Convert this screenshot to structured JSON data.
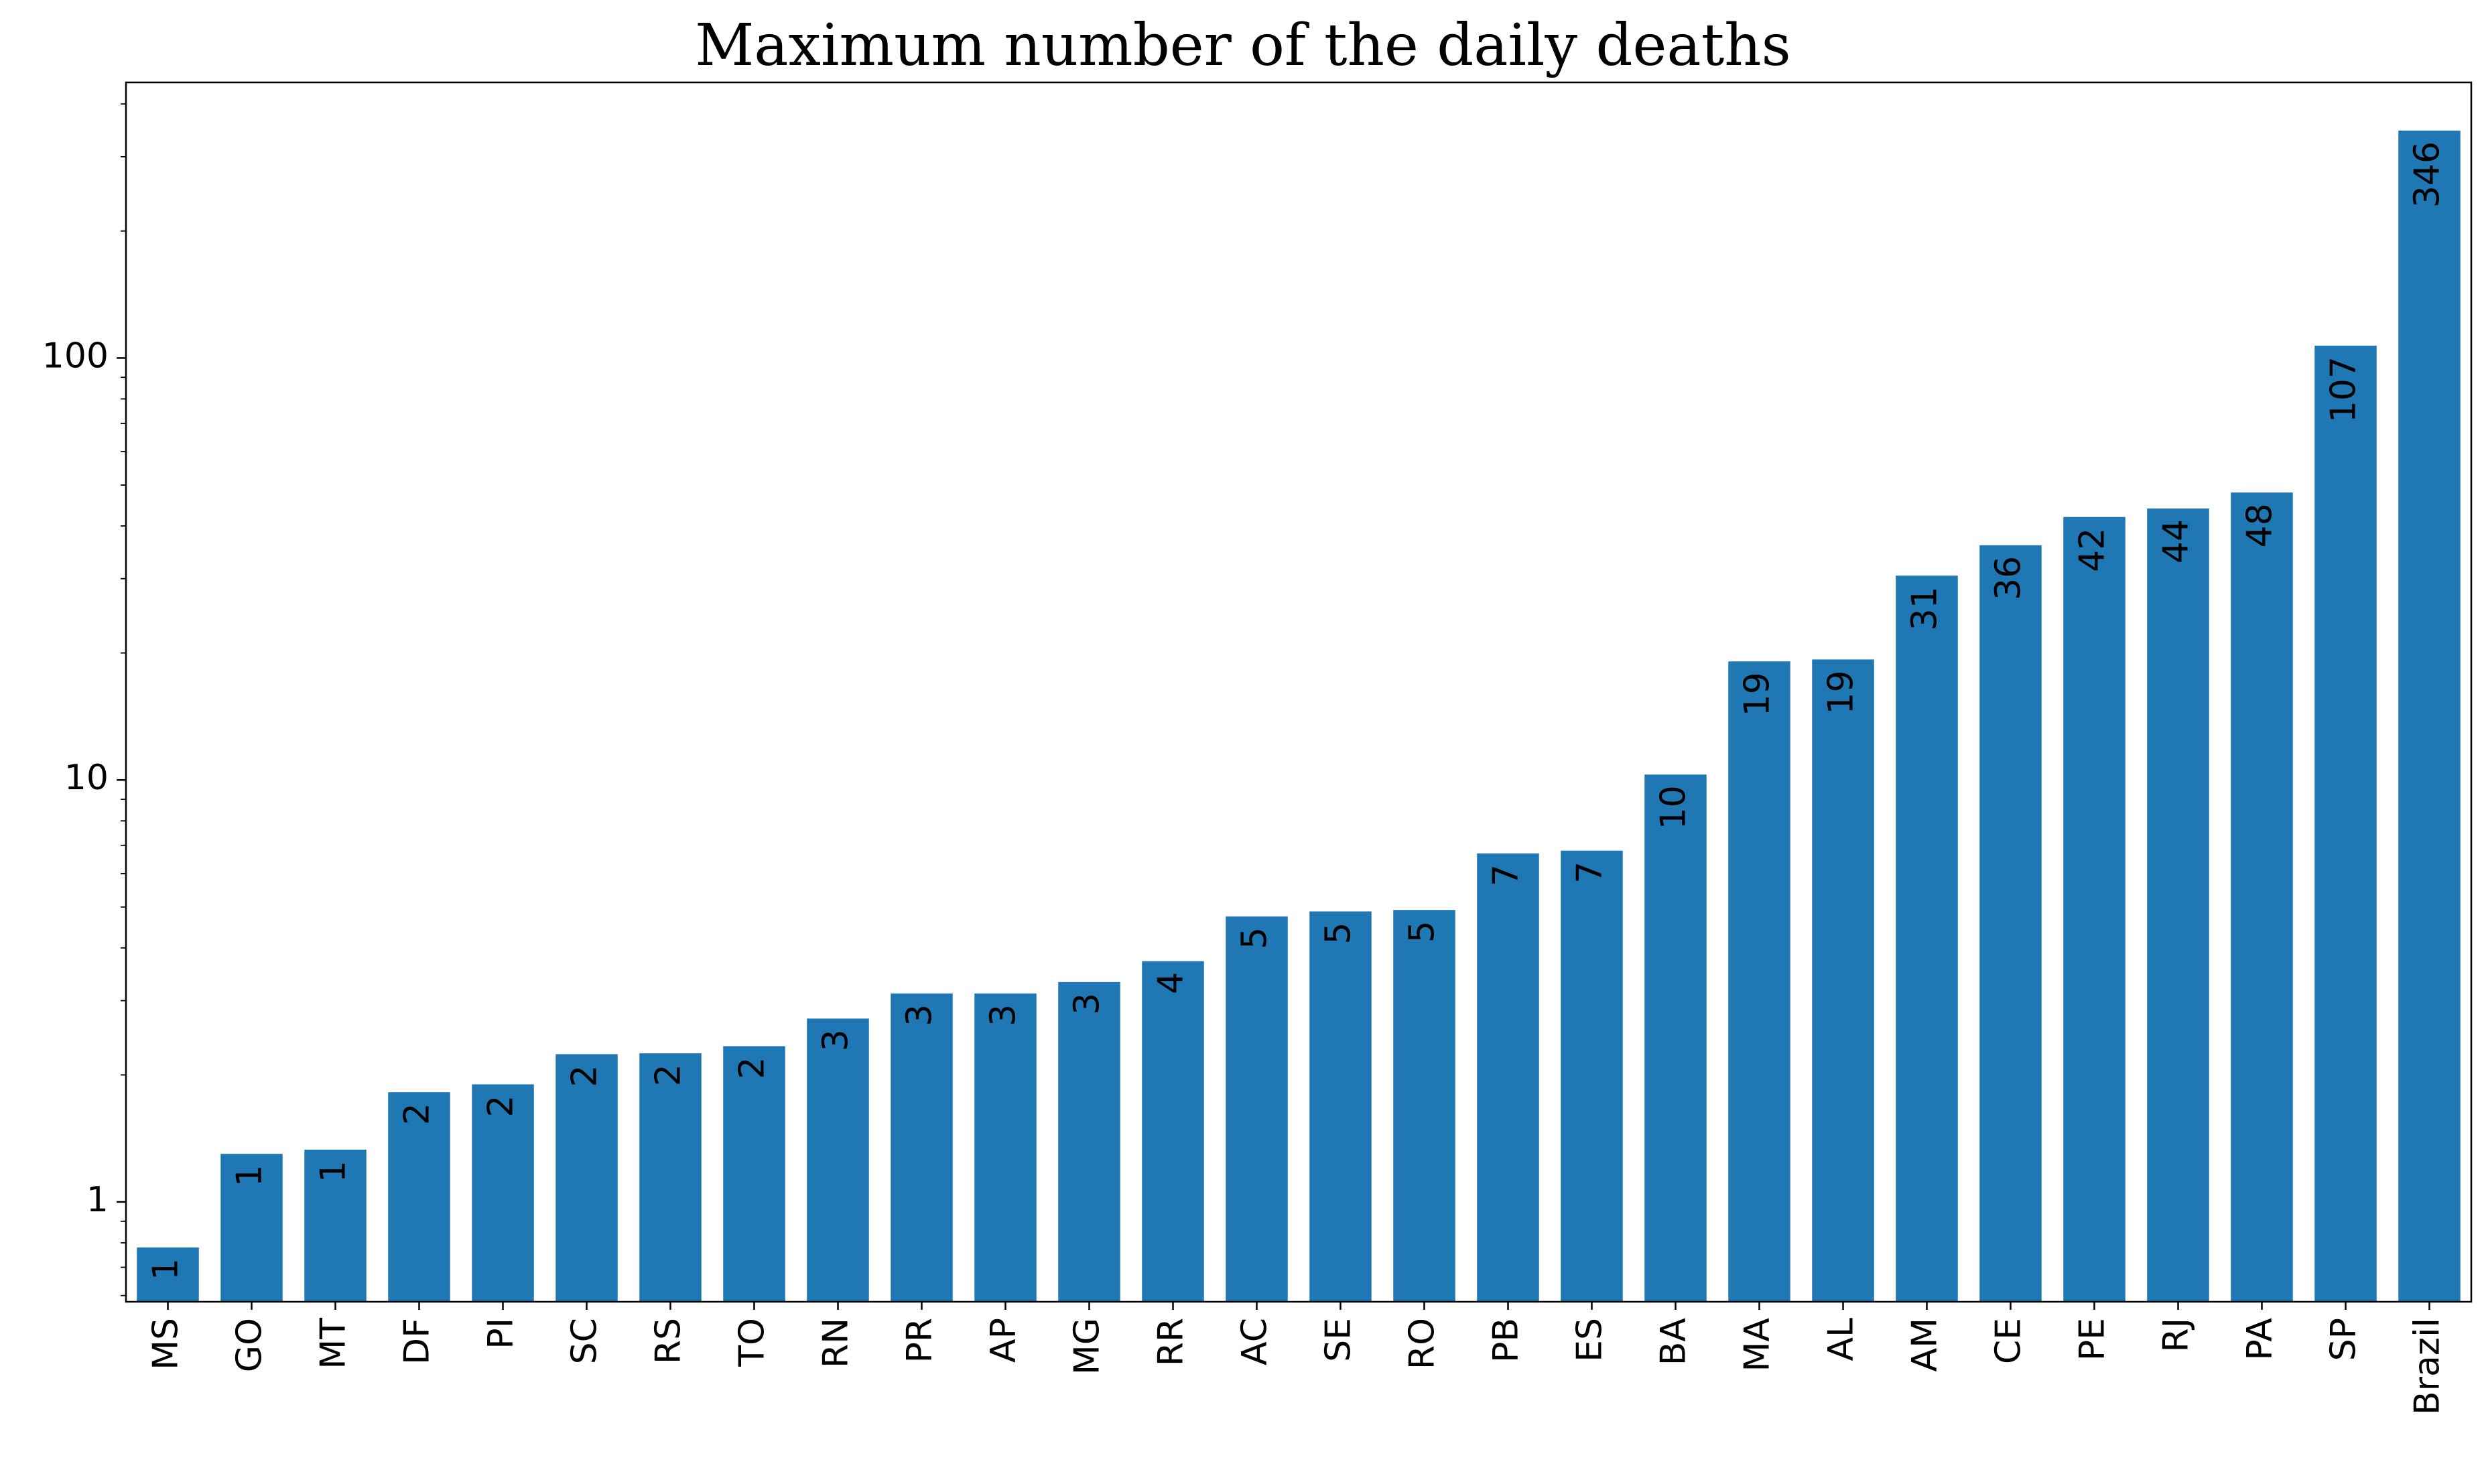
{
  "chart_data": {
    "type": "bar",
    "title": "Maximum number of the daily deaths",
    "xlabel": "",
    "ylabel": "",
    "yscale": "log",
    "ylim": [
      0.58,
      450
    ],
    "yticks": [
      1,
      10,
      100
    ],
    "ytick_labels": [
      "1",
      "10",
      "100"
    ],
    "grid": false,
    "bar_color": "#1f77b4",
    "categories": [
      "MS",
      "GO",
      "MT",
      "DF",
      "PI",
      "SC",
      "RS",
      "TO",
      "RN",
      "PR",
      "AP",
      "MG",
      "RR",
      "AC",
      "SE",
      "RO",
      "PB",
      "ES",
      "BA",
      "MA",
      "AL",
      "AM",
      "CE",
      "PE",
      "RJ",
      "PA",
      "SP",
      "Brazil"
    ],
    "values": [
      0.78,
      1.3,
      1.33,
      1.82,
      1.9,
      2.24,
      2.25,
      2.34,
      2.72,
      3.12,
      3.12,
      3.32,
      3.72,
      4.75,
      4.88,
      4.92,
      6.7,
      6.8,
      10.3,
      19.1,
      19.3,
      30.5,
      36.0,
      42.0,
      44.0,
      48.0,
      107.0,
      346.0
    ],
    "data_labels": [
      "1",
      "1",
      "1",
      "2",
      "2",
      "2",
      "2",
      "2",
      "3",
      "3",
      "3",
      "3",
      "4",
      "5",
      "5",
      "5",
      "7",
      "7",
      "10",
      "19",
      "19",
      "31",
      "36",
      "42",
      "44",
      "48",
      "107",
      "346"
    ]
  }
}
